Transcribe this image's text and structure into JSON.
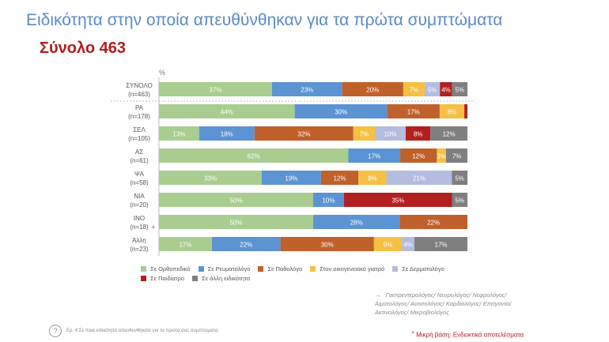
{
  "header": {
    "title": "Ειδικότητα στην οποία απευθύνθηκαν για τα πρώτα συμπτώματα",
    "subtitle": "Σύνολο 463"
  },
  "chart_data": {
    "type": "bar",
    "orientation": "horizontal",
    "stacked": true,
    "axis_label": "%",
    "xlim": [
      0,
      100
    ],
    "categories": [
      {
        "name": "ΣΥΝΟΛΟ",
        "n": "(n=463)",
        "small_base": false
      },
      {
        "name": "ΡΑ",
        "n": "(n=178)",
        "small_base": false
      },
      {
        "name": "ΣΕΛ",
        "n": "(n=105)",
        "small_base": false
      },
      {
        "name": "ΑΣ",
        "n": "(n=61)",
        "small_base": false
      },
      {
        "name": "ΨΑ",
        "n": "(n=58)",
        "small_base": false
      },
      {
        "name": "ΝΙΑ",
        "n": "(n=20)",
        "small_base": false
      },
      {
        "name": "ΙΝΟ",
        "n": "(n=18)",
        "small_base": true
      },
      {
        "name": "Άλλη",
        "n": "(n=23)",
        "small_base": false
      }
    ],
    "series": [
      {
        "name": "Σε Ορθοπεδικό",
        "color": "#a9cd8f",
        "values": [
          37,
          44,
          13,
          62,
          33,
          50,
          50,
          17
        ]
      },
      {
        "name": "Σε Ρευματολόγο",
        "color": "#5b93d3",
        "values": [
          23,
          30,
          18,
          17,
          19,
          10,
          28,
          22
        ]
      },
      {
        "name": "Σε Παθολόγο",
        "color": "#c0602a",
        "values": [
          20,
          17,
          32,
          12,
          12,
          0,
          22,
          30
        ]
      },
      {
        "name": "Στον οικογενειακό γιατρό",
        "color": "#f5c043",
        "values": [
          7,
          8,
          7,
          3,
          9,
          0,
          0,
          9
        ]
      },
      {
        "name": "Σε Δερματολόγο",
        "color": "#b4bcdf",
        "values": [
          5,
          0,
          10,
          0,
          21,
          0,
          0,
          4
        ]
      },
      {
        "name": "Σε Παιδίατρο",
        "color": "#b21f1f",
        "values": [
          4,
          1,
          8,
          0,
          0,
          35,
          0,
          0
        ]
      },
      {
        "name": "Σε άλλη ειδικότητα",
        "color": "#7f7f7f",
        "values": [
          5,
          0,
          12,
          7,
          5,
          5,
          0,
          17
        ]
      }
    ],
    "data_labels": [
      [
        "37%",
        "23%",
        "20%",
        "7%",
        "5%",
        "4%",
        "5%"
      ],
      [
        "44%",
        "30%",
        "17%",
        "8%",
        "",
        "",
        ""
      ],
      [
        "13%",
        "18%",
        "32%",
        "7%",
        "10%",
        "8%",
        "12%"
      ],
      [
        "62%",
        "17%",
        "12%",
        "3%",
        "",
        "",
        "7%"
      ],
      [
        "33%",
        "19%",
        "12%",
        "9%",
        "21%",
        "",
        "5%"
      ],
      [
        "50%",
        "10%",
        "",
        "",
        "",
        "35%",
        "5%"
      ],
      [
        "50%",
        "28%",
        "22%",
        "",
        "",
        "",
        ""
      ],
      [
        "17%",
        "22%",
        "30%",
        "9%",
        "4%",
        "",
        "17%"
      ]
    ],
    "legend_position": "bottom"
  },
  "note": {
    "arrow": "→",
    "text": "Γαστρεντερολόγος/ Νευρολόγος/ Νεφρολόγος/ Αιματολόγος/ Ανοσολόγος/ Καρδιολόγος/ Επείγοντα/ Ακτινολόγος/ Μικροβιολόγος"
  },
  "footer": {
    "question": "Ερ. 4 Σε ποια ειδικότητα απευθυνθήκατε για τα πρώτα σας συμπτώματα;",
    "small_base_marker": "+",
    "small_base_note": "Μικρή βάση: Ενδεικτικά αποτελέσματα"
  }
}
